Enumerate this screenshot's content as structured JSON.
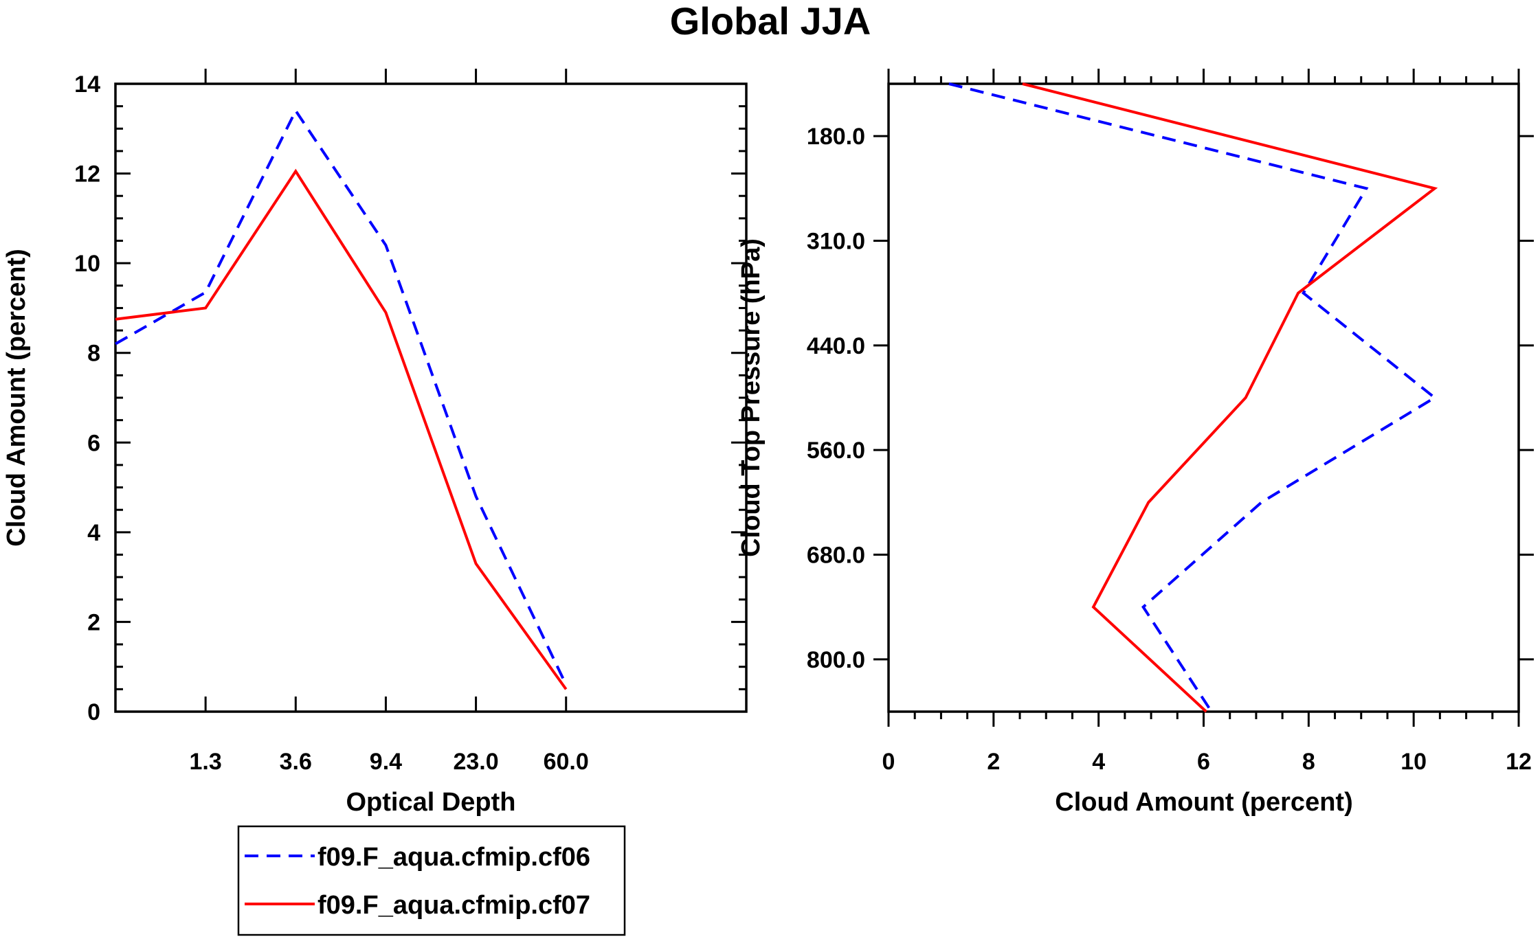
{
  "chart_data": [
    {
      "type": "line",
      "title": "Global JJA",
      "xlabel": "Optical Depth",
      "ylabel": "Cloud Amount (percent)",
      "ylim": [
        0,
        14
      ],
      "y_ticks": [
        "0",
        "2",
        "4",
        "6",
        "8",
        "10",
        "12",
        "14"
      ],
      "x_tick_labels": [
        "1.3",
        "3.6",
        "9.4",
        "23.0",
        "60.0"
      ],
      "x_bins": 7,
      "series": [
        {
          "name": "f09.F_aqua.cfmip.cf06",
          "color": "#0000ff",
          "dash": "dashed",
          "values": [
            8.2,
            9.35,
            13.4,
            10.4,
            4.8,
            0.6
          ]
        },
        {
          "name": "f09.F_aqua.cfmip.cf07",
          "color": "#ff0000",
          "dash": "solid",
          "values": [
            8.75,
            9.0,
            12.05,
            8.9,
            3.3,
            0.5
          ]
        }
      ]
    },
    {
      "type": "line",
      "xlabel": "Cloud Amount (percent)",
      "ylabel": "Cloud Top Pressure (hPa)",
      "xlim": [
        0,
        12
      ],
      "x_ticks": [
        "0",
        "2",
        "4",
        "6",
        "8",
        "10",
        "12"
      ],
      "y_tick_labels": [
        "180.0",
        "310.0",
        "440.0",
        "560.0",
        "680.0",
        "800.0"
      ],
      "y_bins": 6,
      "series": [
        {
          "name": "f09.F_aqua.cfmip.cf06",
          "color": "#0000ff",
          "dash": "dashed",
          "values": [
            1.15,
            9.1,
            7.9,
            10.4,
            7.1,
            4.85,
            6.15
          ]
        },
        {
          "name": "f09.F_aqua.cfmip.cf07",
          "color": "#ff0000",
          "dash": "solid",
          "values": [
            2.55,
            10.4,
            7.8,
            6.8,
            4.95,
            3.9,
            6.05
          ]
        }
      ]
    }
  ],
  "legend": {
    "entries": [
      {
        "label": "f09.F_aqua.cfmip.cf06",
        "color": "#0000ff",
        "dash": "dashed"
      },
      {
        "label": "f09.F_aqua.cfmip.cf07",
        "color": "#ff0000",
        "dash": "solid"
      }
    ]
  }
}
